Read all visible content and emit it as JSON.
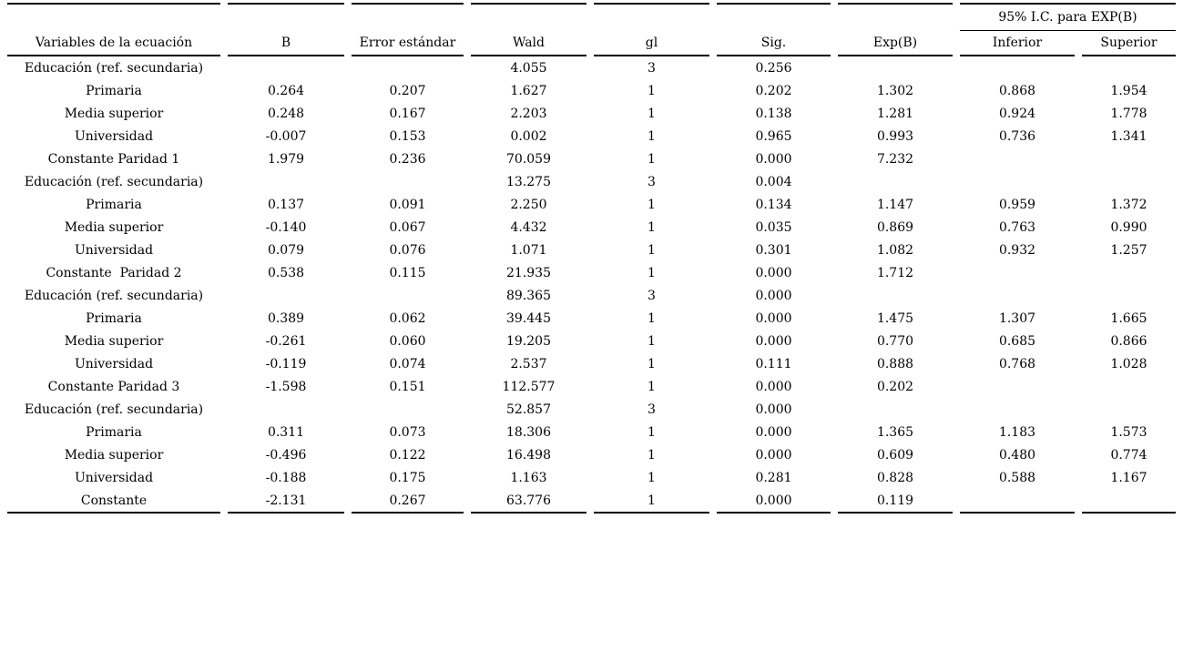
{
  "colors": {
    "background": "#ffffff",
    "text": "#000000",
    "rule": "#000000"
  },
  "table": {
    "ci_group_header": "95% I.C. para EXP(B)",
    "columns": [
      "Variables de la ecuación",
      "B",
      "Error estándar",
      "Wald",
      "gl",
      "Sig.",
      "Exp(B)",
      "Inferior",
      "Superior"
    ],
    "rows": [
      [
        "Educación (ref. secundaria)",
        "",
        "",
        "4.055",
        "3",
        "0.256",
        "",
        "",
        ""
      ],
      [
        "Primaria",
        "0.264",
        "0.207",
        "1.627",
        "1",
        "0.202",
        "1.302",
        "0.868",
        "1.954"
      ],
      [
        "Media superior",
        "0.248",
        "0.167",
        "2.203",
        "1",
        "0.138",
        "1.281",
        "0.924",
        "1.778"
      ],
      [
        "Universidad",
        "-0.007",
        "0.153",
        "0.002",
        "1",
        "0.965",
        "0.993",
        "0.736",
        "1.341"
      ],
      [
        "Constante Paridad 1",
        "1.979",
        "0.236",
        "70.059",
        "1",
        "0.000",
        "7.232",
        "",
        ""
      ],
      [
        "Educación (ref. secundaria)",
        "",
        "",
        "13.275",
        "3",
        "0.004",
        "",
        "",
        ""
      ],
      [
        "Primaria",
        "0.137",
        "0.091",
        "2.250",
        "1",
        "0.134",
        "1.147",
        "0.959",
        "1.372"
      ],
      [
        "Media superior",
        "-0.140",
        "0.067",
        "4.432",
        "1",
        "0.035",
        "0.869",
        "0.763",
        "0.990"
      ],
      [
        "Universidad",
        "0.079",
        "0.076",
        "1.071",
        "1",
        "0.301",
        "1.082",
        "0.932",
        "1.257"
      ],
      [
        "Constante  Paridad 2",
        "0.538",
        "0.115",
        "21.935",
        "1",
        "0.000",
        "1.712",
        "",
        ""
      ],
      [
        "Educación (ref. secundaria)",
        "",
        "",
        "89.365",
        "3",
        "0.000",
        "",
        "",
        ""
      ],
      [
        "Primaria",
        "0.389",
        "0.062",
        "39.445",
        "1",
        "0.000",
        "1.475",
        "1.307",
        "1.665"
      ],
      [
        "Media superior",
        "-0.261",
        "0.060",
        "19.205",
        "1",
        "0.000",
        "0.770",
        "0.685",
        "0.866"
      ],
      [
        "Universidad",
        "-0.119",
        "0.074",
        "2.537",
        "1",
        "0.111",
        "0.888",
        "0.768",
        "1.028"
      ],
      [
        "Constante Paridad 3",
        "-1.598",
        "0.151",
        "112.577",
        "1",
        "0.000",
        "0.202",
        "",
        ""
      ],
      [
        "Educación (ref. secundaria)",
        "",
        "",
        "52.857",
        "3",
        "0.000",
        "",
        "",
        ""
      ],
      [
        "Primaria",
        "0.311",
        "0.073",
        "18.306",
        "1",
        "0.000",
        "1.365",
        "1.183",
        "1.573"
      ],
      [
        "Media superior",
        "-0.496",
        "0.122",
        "16.498",
        "1",
        "0.000",
        "0.609",
        "0.480",
        "0.774"
      ],
      [
        "Universidad",
        "-0.188",
        "0.175",
        "1.163",
        "1",
        "0.281",
        "0.828",
        "0.588",
        "1.167"
      ],
      [
        "Constante",
        "-2.131",
        "0.267",
        "63.776",
        "1",
        "0.000",
        "0.119",
        "",
        ""
      ]
    ]
  }
}
